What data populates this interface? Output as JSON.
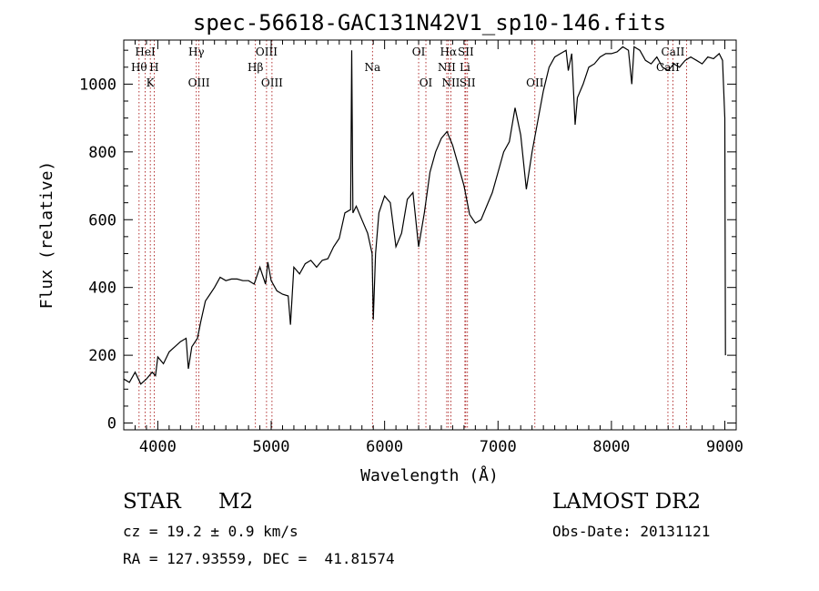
{
  "chart_data": {
    "type": "line",
    "title": "spec-56618-GAC131N42V1_sp10-146.fits",
    "xlabel": "Wavelength (Å)",
    "ylabel": "Flux (relative)",
    "xlim": [
      3700,
      9100
    ],
    "ylim": [
      -20,
      1130
    ],
    "xticks": [
      4000,
      5000,
      6000,
      7000,
      8000,
      9000
    ],
    "yticks": [
      0,
      200,
      400,
      600,
      800,
      1000
    ],
    "grid": false,
    "series": [
      {
        "x": [
          3700,
          3750,
          3800,
          3850,
          3900,
          3950,
          3980,
          4000,
          4050,
          4100,
          4150,
          4200,
          4250,
          4270,
          4300,
          4350,
          4380,
          4420,
          4450,
          4500,
          4550,
          4600,
          4650,
          4700,
          4750,
          4800,
          4850,
          4900,
          4950,
          4970,
          5000,
          5050,
          5100,
          5150,
          5170,
          5200,
          5250,
          5300,
          5350,
          5400,
          5450,
          5500,
          5550,
          5600,
          5650,
          5700,
          5710,
          5720,
          5750,
          5800,
          5850,
          5890,
          5900,
          5920,
          5950,
          6000,
          6050,
          6100,
          6150,
          6200,
          6250,
          6300,
          6350,
          6400,
          6450,
          6500,
          6550,
          6600,
          6650,
          6700,
          6750,
          6800,
          6850,
          6900,
          6950,
          7000,
          7050,
          7100,
          7150,
          7200,
          7250,
          7300,
          7350,
          7400,
          7450,
          7500,
          7550,
          7600,
          7620,
          7650,
          7680,
          7700,
          7750,
          7800,
          7850,
          7900,
          7950,
          8000,
          8050,
          8100,
          8150,
          8180,
          8200,
          8250,
          8300,
          8350,
          8400,
          8450,
          8500,
          8550,
          8600,
          8650,
          8700,
          8750,
          8800,
          8850,
          8900,
          8950,
          8980,
          9000,
          9005
        ],
        "y": [
          130,
          120,
          150,
          115,
          130,
          150,
          140,
          195,
          175,
          210,
          225,
          240,
          250,
          160,
          225,
          250,
          300,
          360,
          375,
          400,
          430,
          420,
          425,
          425,
          420,
          420,
          410,
          460,
          410,
          475,
          420,
          390,
          380,
          375,
          290,
          460,
          440,
          470,
          480,
          460,
          480,
          485,
          520,
          545,
          620,
          630,
          1100,
          620,
          640,
          600,
          560,
          500,
          305,
          500,
          620,
          670,
          650,
          520,
          560,
          660,
          680,
          520,
          620,
          740,
          800,
          840,
          860,
          820,
          760,
          700,
          615,
          590,
          600,
          640,
          680,
          740,
          800,
          830,
          930,
          850,
          690,
          800,
          890,
          980,
          1050,
          1080,
          1090,
          1100,
          1040,
          1090,
          880,
          960,
          1000,
          1050,
          1060,
          1080,
          1090,
          1090,
          1095,
          1110,
          1100,
          1000,
          1110,
          1100,
          1070,
          1060,
          1080,
          1050,
          1040,
          1060,
          1050,
          1070,
          1080,
          1070,
          1060,
          1080,
          1075,
          1090,
          1070,
          900,
          200
        ]
      }
    ],
    "line_ticks": [
      {
        "w": 3889,
        "label": "HeI",
        "row": 0
      },
      {
        "w": 3835,
        "label": "Hθ",
        "row": 1
      },
      {
        "w": 3968,
        "label": "H",
        "row": 1
      },
      {
        "w": 3934,
        "label": "K",
        "row": 2
      },
      {
        "w": 4340,
        "label": "Hγ",
        "row": 0
      },
      {
        "w": 4363,
        "label": "OIII",
        "row": 2
      },
      {
        "w": 4959,
        "label": "OIII",
        "row": 0
      },
      {
        "w": 4861,
        "label": "Hβ",
        "row": 1
      },
      {
        "w": 5007,
        "label": "OIII",
        "row": 2
      },
      {
        "w": 5893,
        "label": "Na",
        "row": 1
      },
      {
        "w": 6300,
        "label": "OI",
        "row": 0
      },
      {
        "w": 6364,
        "label": "OI",
        "row": 2
      },
      {
        "w": 6563,
        "label": "Hα",
        "row": 0
      },
      {
        "w": 6548,
        "label": "NII",
        "row": 1
      },
      {
        "w": 6584,
        "label": "NII",
        "row": 2
      },
      {
        "w": 6716,
        "label": "SII",
        "row": 0
      },
      {
        "w": 6708,
        "label": "Li",
        "row": 1
      },
      {
        "w": 6731,
        "label": "SII",
        "row": 2
      },
      {
        "w": 7325,
        "label": "OII",
        "row": 2
      },
      {
        "w": 8542,
        "label": "CaII",
        "row": 0
      },
      {
        "w": 8498,
        "label": "CaII",
        "row": 1
      },
      {
        "w": 8662,
        "label": "",
        "row": 1
      }
    ]
  },
  "info": {
    "object_class": "STAR",
    "subclass": "M2",
    "survey": "LAMOST DR2",
    "cz": "cz = 19.2 ± 0.9 km/s",
    "obs_date": "Obs-Date: 20131121",
    "coords": "RA = 127.93559, DEC =  41.81574"
  }
}
